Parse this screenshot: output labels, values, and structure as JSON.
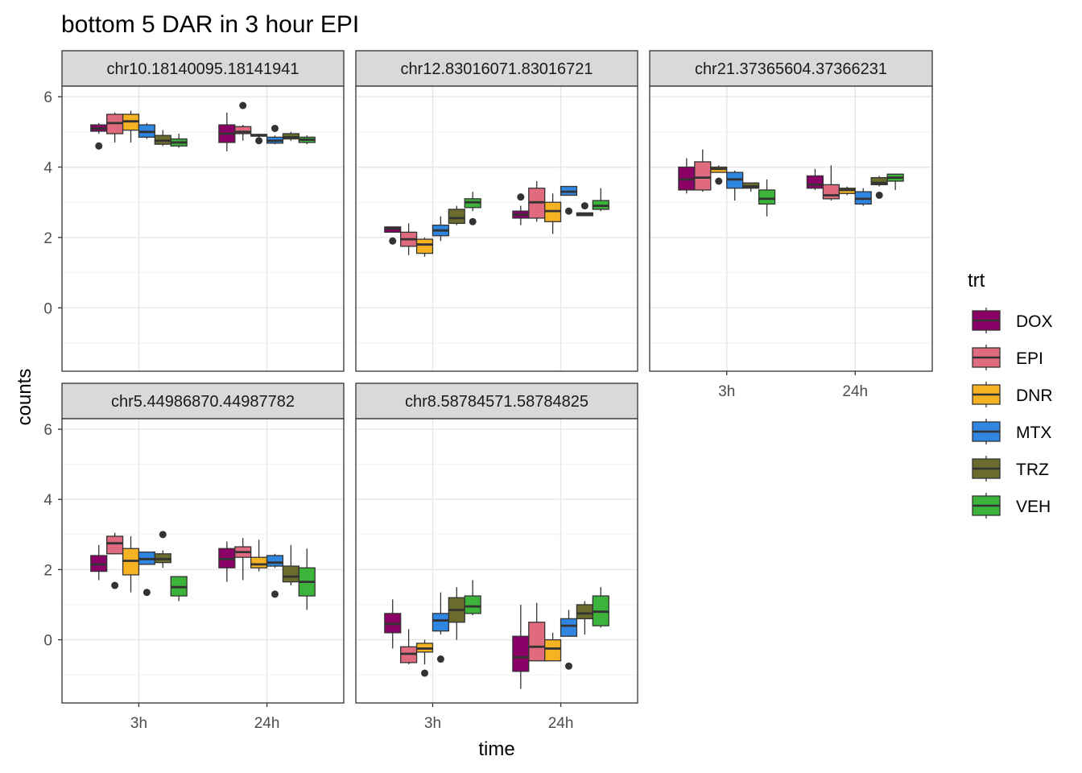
{
  "chart_data": {
    "type": "box",
    "title": "bottom 5 DAR in 3 hour EPI",
    "xlabel": "time",
    "ylabel": "counts",
    "ylim": [
      -1.8,
      6.3
    ],
    "y_ticks": [
      0,
      2,
      4,
      6
    ],
    "x_categories": [
      "3h",
      "24h"
    ],
    "grid": true,
    "legend": {
      "title": "trt",
      "position": "right",
      "items": [
        {
          "label": "DOX",
          "color": "#8b0066"
        },
        {
          "label": "EPI",
          "color": "#e06a7e"
        },
        {
          "label": "DNR",
          "color": "#f5b323"
        },
        {
          "label": "MTX",
          "color": "#2f86e0"
        },
        {
          "label": "TRZ",
          "color": "#6b6b2e"
        },
        {
          "label": "VEH",
          "color": "#3cb33a"
        }
      ]
    },
    "panels": [
      {
        "strip": "chr10.18140095.18141941",
        "groups": [
          {
            "time": "3h",
            "boxes": [
              {
                "trt": "DOX",
                "stats": [
                  4.95,
                  5.02,
                  5.1,
                  5.2,
                  5.25
                ],
                "outliers": [
                  4.6
                ]
              },
              {
                "trt": "EPI",
                "stats": [
                  4.7,
                  4.95,
                  5.25,
                  5.5,
                  5.55
                ],
                "outliers": []
              },
              {
                "trt": "DNR",
                "stats": [
                  4.7,
                  5.05,
                  5.3,
                  5.5,
                  5.6
                ],
                "outliers": []
              },
              {
                "trt": "MTX",
                "stats": [
                  4.8,
                  4.85,
                  5.0,
                  5.2,
                  5.25
                ],
                "outliers": []
              },
              {
                "trt": "TRZ",
                "stats": [
                  4.6,
                  4.65,
                  4.75,
                  4.9,
                  5.05
                ],
                "outliers": []
              },
              {
                "trt": "VEH",
                "stats": [
                  4.55,
                  4.6,
                  4.7,
                  4.8,
                  4.95
                ],
                "outliers": []
              }
            ]
          },
          {
            "time": "24h",
            "boxes": [
              {
                "trt": "DOX",
                "stats": [
                  4.45,
                  4.7,
                  4.95,
                  5.2,
                  5.55
                ],
                "outliers": []
              },
              {
                "trt": "EPI",
                "stats": [
                  4.75,
                  4.95,
                  5.0,
                  5.15,
                  5.2
                ],
                "outliers": [
                  5.75
                ]
              },
              {
                "trt": "DNR",
                "stats": [
                  4.85,
                  4.88,
                  4.9,
                  4.93,
                  4.95
                ],
                "outliers": [
                  4.75
                ]
              },
              {
                "trt": "MTX",
                "stats": [
                  4.65,
                  4.68,
                  4.75,
                  4.85,
                  4.9
                ],
                "outliers": [
                  5.1
                ]
              },
              {
                "trt": "TRZ",
                "stats": [
                  4.75,
                  4.8,
                  4.85,
                  4.95,
                  5.0
                ],
                "outliers": []
              },
              {
                "trt": "VEH",
                "stats": [
                  4.65,
                  4.7,
                  4.78,
                  4.85,
                  4.9
                ],
                "outliers": []
              }
            ]
          }
        ]
      },
      {
        "strip": "chr12.83016071.83016721",
        "groups": [
          {
            "time": "3h",
            "boxes": [
              {
                "trt": "DOX",
                "stats": [
                  2.15,
                  2.15,
                  2.25,
                  2.3,
                  2.3
                ],
                "outliers": [
                  1.9
                ]
              },
              {
                "trt": "EPI",
                "stats": [
                  1.5,
                  1.75,
                  1.95,
                  2.15,
                  2.4
                ],
                "outliers": []
              },
              {
                "trt": "DNR",
                "stats": [
                  1.45,
                  1.55,
                  1.8,
                  1.95,
                  2.0
                ],
                "outliers": []
              },
              {
                "trt": "MTX",
                "stats": [
                  1.9,
                  2.05,
                  2.2,
                  2.35,
                  2.6
                ],
                "outliers": []
              },
              {
                "trt": "TRZ",
                "stats": [
                  2.35,
                  2.4,
                  2.55,
                  2.8,
                  2.9
                ],
                "outliers": []
              },
              {
                "trt": "VEH",
                "stats": [
                  2.75,
                  2.85,
                  3.0,
                  3.1,
                  3.3
                ],
                "outliers": [
                  2.45
                ]
              }
            ]
          },
          {
            "time": "24h",
            "boxes": [
              {
                "trt": "DOX",
                "stats": [
                  2.35,
                  2.55,
                  2.65,
                  2.75,
                  2.9
                ],
                "outliers": [
                  3.15
                ]
              },
              {
                "trt": "EPI",
                "stats": [
                  2.45,
                  2.55,
                  3.0,
                  3.4,
                  3.6
                ],
                "outliers": []
              },
              {
                "trt": "DNR",
                "stats": [
                  2.1,
                  2.45,
                  2.75,
                  3.0,
                  3.25
                ],
                "outliers": []
              },
              {
                "trt": "MTX",
                "stats": [
                  3.2,
                  3.2,
                  3.3,
                  3.45,
                  3.45
                ],
                "outliers": [
                  2.75
                ]
              },
              {
                "trt": "TRZ",
                "stats": [
                  2.62,
                  2.62,
                  2.65,
                  2.7,
                  2.7
                ],
                "outliers": [
                  2.9
                ]
              },
              {
                "trt": "VEH",
                "stats": [
                  2.75,
                  2.8,
                  2.9,
                  3.05,
                  3.4
                ],
                "outliers": []
              }
            ]
          }
        ]
      },
      {
        "strip": "chr21.37365604.37366231",
        "groups": [
          {
            "time": "3h",
            "boxes": [
              {
                "trt": "DOX",
                "stats": [
                  3.25,
                  3.35,
                  3.65,
                  4.0,
                  4.25
                ],
                "outliers": []
              },
              {
                "trt": "EPI",
                "stats": [
                  3.3,
                  3.35,
                  3.7,
                  4.15,
                  4.5
                ],
                "outliers": []
              },
              {
                "trt": "DNR",
                "stats": [
                  3.85,
                  3.85,
                  3.95,
                  4.0,
                  4.05
                ],
                "outliers": [
                  3.6
                ]
              },
              {
                "trt": "MTX",
                "stats": [
                  3.05,
                  3.4,
                  3.65,
                  3.85,
                  3.9
                ],
                "outliers": []
              },
              {
                "trt": "TRZ",
                "stats": [
                  3.3,
                  3.4,
                  3.45,
                  3.55,
                  3.55
                ],
                "outliers": []
              },
              {
                "trt": "VEH",
                "stats": [
                  2.6,
                  2.95,
                  3.1,
                  3.35,
                  3.65
                ],
                "outliers": []
              }
            ]
          },
          {
            "time": "24h",
            "boxes": [
              {
                "trt": "DOX",
                "stats": [
                  3.35,
                  3.4,
                  3.5,
                  3.75,
                  3.95
                ],
                "outliers": []
              },
              {
                "trt": "EPI",
                "stats": [
                  3.05,
                  3.1,
                  3.2,
                  3.5,
                  4.05
                ],
                "outliers": []
              },
              {
                "trt": "DNR",
                "stats": [
                  3.2,
                  3.25,
                  3.35,
                  3.4,
                  3.45
                ],
                "outliers": []
              },
              {
                "trt": "MTX",
                "stats": [
                  2.9,
                  2.95,
                  3.1,
                  3.3,
                  3.4
                ],
                "outliers": []
              },
              {
                "trt": "TRZ",
                "stats": [
                  3.45,
                  3.5,
                  3.55,
                  3.7,
                  3.75
                ],
                "outliers": [
                  3.2
                ]
              },
              {
                "trt": "VEH",
                "stats": [
                  3.35,
                  3.6,
                  3.7,
                  3.8,
                  3.8
                ],
                "outliers": []
              }
            ]
          }
        ]
      },
      {
        "strip": "chr5.44986870.44987782",
        "groups": [
          {
            "time": "3h",
            "boxes": [
              {
                "trt": "DOX",
                "stats": [
                  1.7,
                  1.95,
                  2.15,
                  2.4,
                  2.7
                ],
                "outliers": []
              },
              {
                "trt": "EPI",
                "stats": [
                  2.45,
                  2.45,
                  2.75,
                  2.95,
                  3.05
                ],
                "outliers": [
                  1.55
                ]
              },
              {
                "trt": "DNR",
                "stats": [
                  1.35,
                  1.85,
                  2.25,
                  2.6,
                  2.95
                ],
                "outliers": []
              },
              {
                "trt": "MTX",
                "stats": [
                  2.15,
                  2.15,
                  2.3,
                  2.5,
                  2.5
                ],
                "outliers": [
                  1.35
                ]
              },
              {
                "trt": "TRZ",
                "stats": [
                  2.05,
                  2.2,
                  2.3,
                  2.45,
                  2.55
                ],
                "outliers": [
                  3.0
                ]
              },
              {
                "trt": "VEH",
                "stats": [
                  1.1,
                  1.25,
                  1.5,
                  1.8,
                  1.8
                ],
                "outliers": []
              }
            ]
          },
          {
            "time": "24h",
            "boxes": [
              {
                "trt": "DOX",
                "stats": [
                  1.65,
                  2.05,
                  2.3,
                  2.6,
                  2.8
                ],
                "outliers": []
              },
              {
                "trt": "EPI",
                "stats": [
                  1.7,
                  2.35,
                  2.5,
                  2.65,
                  2.9
                ],
                "outliers": []
              },
              {
                "trt": "DNR",
                "stats": [
                  1.95,
                  2.05,
                  2.15,
                  2.35,
                  2.85
                ],
                "outliers": []
              },
              {
                "trt": "MTX",
                "stats": [
                  2.05,
                  2.1,
                  2.2,
                  2.4,
                  2.45
                ],
                "outliers": [
                  1.3
                ]
              },
              {
                "trt": "TRZ",
                "stats": [
                  1.55,
                  1.65,
                  1.8,
                  2.1,
                  2.7
                ],
                "outliers": []
              },
              {
                "trt": "VEH",
                "stats": [
                  0.85,
                  1.25,
                  1.65,
                  2.05,
                  2.6
                ],
                "outliers": []
              }
            ]
          }
        ]
      },
      {
        "strip": "chr8.58784571.58784825",
        "groups": [
          {
            "time": "3h",
            "boxes": [
              {
                "trt": "DOX",
                "stats": [
                  -0.25,
                  0.2,
                  0.45,
                  0.75,
                  1.15
                ],
                "outliers": []
              },
              {
                "trt": "EPI",
                "stats": [
                  -0.7,
                  -0.65,
                  -0.4,
                  -0.2,
                  0.3
                ],
                "outliers": []
              },
              {
                "trt": "DNR",
                "stats": [
                  -0.7,
                  -0.35,
                  -0.25,
                  -0.1,
                  0.0
                ],
                "outliers": [
                  -0.95
                ]
              },
              {
                "trt": "MTX",
                "stats": [
                  0.15,
                  0.25,
                  0.55,
                  0.75,
                  1.35
                ],
                "outliers": [
                  -0.55
                ]
              },
              {
                "trt": "TRZ",
                "stats": [
                  0.0,
                  0.5,
                  0.85,
                  1.2,
                  1.5
                ],
                "outliers": []
              },
              {
                "trt": "VEH",
                "stats": [
                  0.7,
                  0.75,
                  0.95,
                  1.25,
                  1.7
                ],
                "outliers": []
              }
            ]
          },
          {
            "time": "24h",
            "boxes": [
              {
                "trt": "DOX",
                "stats": [
                  -1.4,
                  -0.9,
                  -0.5,
                  0.1,
                  1.0
                ],
                "outliers": []
              },
              {
                "trt": "EPI",
                "stats": [
                  -0.6,
                  -0.6,
                  -0.2,
                  0.5,
                  1.05
                ],
                "outliers": []
              },
              {
                "trt": "DNR",
                "stats": [
                  -0.6,
                  -0.6,
                  -0.25,
                  0.0,
                  0.2
                ],
                "outliers": []
              },
              {
                "trt": "MTX",
                "stats": [
                  0.1,
                  0.1,
                  0.4,
                  0.6,
                  0.85
                ],
                "outliers": [
                  -0.75
                ]
              },
              {
                "trt": "TRZ",
                "stats": [
                  0.15,
                  0.6,
                  0.75,
                  1.0,
                  1.1
                ],
                "outliers": []
              },
              {
                "trt": "VEH",
                "stats": [
                  0.35,
                  0.4,
                  0.8,
                  1.25,
                  1.5
                ],
                "outliers": []
              }
            ]
          }
        ]
      }
    ]
  }
}
